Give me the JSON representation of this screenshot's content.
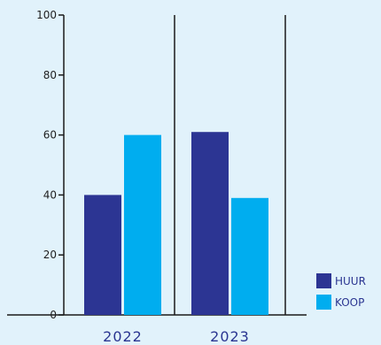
{
  "chart_data": {
    "type": "bar",
    "categories": [
      "2022",
      "2023"
    ],
    "series": [
      {
        "name": "HUUR",
        "values": [
          40,
          61
        ],
        "color": "#2c3593"
      },
      {
        "name": "KOOP",
        "values": [
          60,
          39
        ],
        "color": "#00adef"
      }
    ],
    "yticks": [
      0,
      20,
      40,
      60,
      80,
      100
    ],
    "ylim": [
      0,
      100
    ],
    "legend_position": "bottom-right",
    "grid": false
  }
}
